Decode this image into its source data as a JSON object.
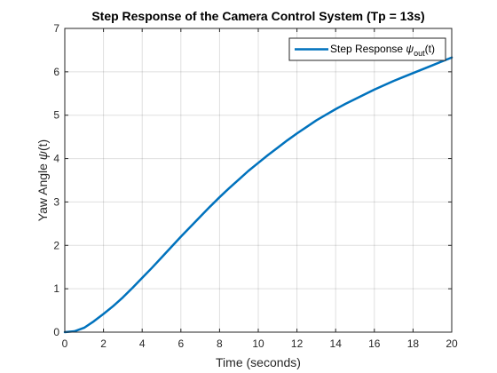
{
  "chart_data": {
    "type": "line",
    "title": "Step Response of the Camera Control System (Tp = 13s)",
    "xlabel": "Time (seconds)",
    "ylabel": "Yaw Angle ψ(t)",
    "xlim": [
      0,
      20
    ],
    "ylim": [
      0,
      7
    ],
    "xticks": [
      0,
      2,
      4,
      6,
      8,
      10,
      12,
      14,
      16,
      18,
      20
    ],
    "yticks": [
      0,
      1,
      2,
      3,
      4,
      5,
      6,
      7
    ],
    "grid": true,
    "legend_position": "top-right",
    "series": [
      {
        "name": "Step Response ψout(t)",
        "color": "#0072BD",
        "x": [
          0,
          0.5,
          1,
          1.5,
          2,
          2.5,
          3,
          3.5,
          4,
          4.5,
          5,
          5.5,
          6,
          6.5,
          7,
          7.5,
          8,
          8.5,
          9,
          9.5,
          10,
          10.5,
          11,
          11.5,
          12,
          12.5,
          13,
          13.5,
          14,
          14.5,
          15,
          15.5,
          16,
          16.5,
          17,
          17.5,
          18,
          18.5,
          19,
          19.5,
          20
        ],
        "y": [
          0,
          0.02,
          0.1,
          0.25,
          0.42,
          0.6,
          0.8,
          1.02,
          1.25,
          1.48,
          1.72,
          1.96,
          2.2,
          2.43,
          2.66,
          2.89,
          3.11,
          3.32,
          3.52,
          3.72,
          3.9,
          4.08,
          4.25,
          4.42,
          4.58,
          4.73,
          4.88,
          5.01,
          5.14,
          5.26,
          5.37,
          5.48,
          5.59,
          5.69,
          5.79,
          5.88,
          5.97,
          6.06,
          6.15,
          6.24,
          6.33
        ]
      }
    ],
    "legend": {
      "label_main": "Step Response ",
      "label_symbol": "ψ",
      "label_sub": "out",
      "label_tail": "(t)"
    },
    "ylabel_parts": {
      "main": "Yaw Angle ",
      "symbol": "ψ",
      "tail": "(t)"
    }
  }
}
